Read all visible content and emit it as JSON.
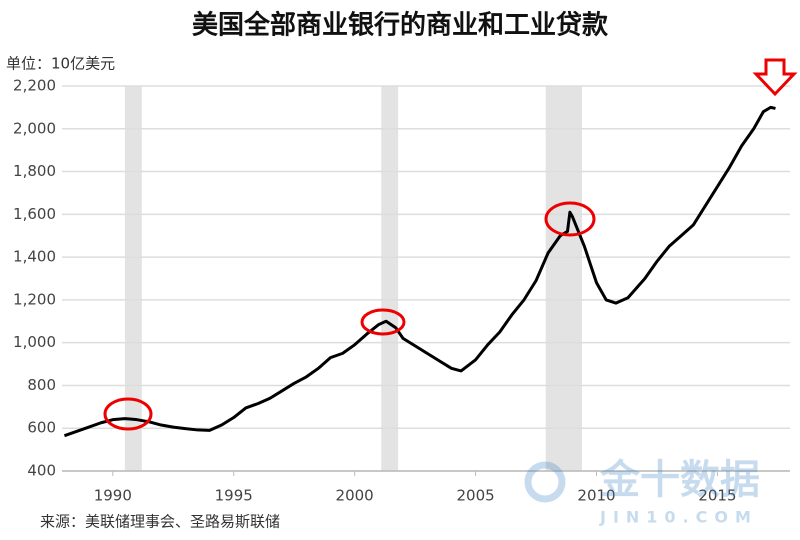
{
  "chart_data": {
    "type": "line",
    "title": "美国全部商业银行的商业和工业贷款",
    "y_label": "单位：10亿美元",
    "source": "来源：美联储理事会、圣路易斯联储",
    "watermark": {
      "name": "金十数据",
      "site": "JIN10.COM"
    },
    "x": [
      1988.0,
      1988.5,
      1989.0,
      1989.5,
      1990.0,
      1990.5,
      1991.0,
      1991.5,
      1992.0,
      1992.5,
      1993.0,
      1993.5,
      1994.0,
      1994.5,
      1995.0,
      1995.5,
      1996.0,
      1996.5,
      1997.0,
      1997.5,
      1998.0,
      1998.5,
      1999.0,
      1999.5,
      2000.0,
      2000.5,
      2001.0,
      2001.3,
      2001.7,
      2002.0,
      2002.5,
      2003.0,
      2003.5,
      2004.0,
      2004.4,
      2005.0,
      2005.5,
      2006.0,
      2006.5,
      2007.0,
      2007.5,
      2008.0,
      2008.5,
      2008.8,
      2008.9,
      2009.0,
      2009.5,
      2010.0,
      2010.4,
      2010.8,
      2011.3,
      2012.0,
      2012.5,
      2013.0,
      2013.5,
      2014.0,
      2014.5,
      2015.0,
      2015.5,
      2016.0,
      2016.5,
      2016.9,
      2017.2,
      2017.4
    ],
    "series": [
      {
        "color": "#000000",
        "values": [
          565,
          585,
          605,
          625,
          640,
          645,
          640,
          630,
          615,
          605,
          598,
          592,
          590,
          615,
          650,
          695,
          715,
          740,
          775,
          810,
          840,
          880,
          930,
          950,
          990,
          1040,
          1085,
          1100,
          1070,
          1020,
          985,
          950,
          915,
          880,
          868,
          920,
          990,
          1050,
          1130,
          1200,
          1290,
          1420,
          1500,
          1520,
          1610,
          1590,
          1450,
          1280,
          1200,
          1185,
          1210,
          1300,
          1380,
          1450,
          1500,
          1550,
          1640,
          1730,
          1820,
          1920,
          2000,
          2080,
          2100,
          2095
        ]
      }
    ],
    "recessions": [
      [
        1990.5,
        1991.2
      ],
      [
        2001.1,
        2001.8
      ],
      [
        2007.9,
        2009.4
      ]
    ],
    "recession_color": "#e3e3e3",
    "xlim": [
      1987.9,
      2018
    ],
    "ylim": [
      400,
      2200
    ],
    "xticks": [
      1990,
      1995,
      2000,
      2005,
      2010,
      2015
    ],
    "yticks": [
      400,
      600,
      800,
      {
        "value": 1000,
        "label": "1,000"
      },
      {
        "value": 1200,
        "label": "1,200"
      },
      {
        "value": 1400,
        "label": "1,400"
      },
      {
        "value": 1600,
        "label": "1,600"
      },
      {
        "value": 1800,
        "label": "1,800"
      },
      {
        "value": 2000,
        "label": "2,000"
      },
      {
        "value": 2200,
        "label": "2,200"
      }
    ],
    "grid": true
  }
}
